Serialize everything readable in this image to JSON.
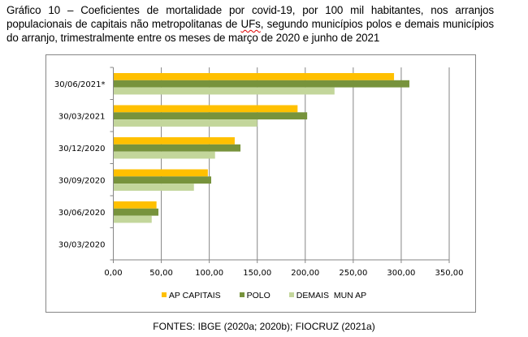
{
  "title_parts": {
    "before": "Gráfico 10 – Coeficientes de mortalidade por covid-19, por 100 mil habitantes, nos arranjos populacionais de capitais não metropolitanas de ",
    "underlined": "UFs",
    "after": ", segundo municípios polos e demais municípios do arranjo, trimestralmente entre os meses de março de 2020 e junho de 2021"
  },
  "source": "FONTES: IBGE (2020a; 2020b); FIOCRUZ (2021a)",
  "chart_data": {
    "type": "bar",
    "orientation": "horizontal",
    "title": "Gráfico 10 – Coeficientes de mortalidade por covid-19, por 100 mil habitantes, nos arranjos populacionais de capitais não metropolitanas de UFs, segundo municípios polos e demais municípios do arranjo, trimestralmente entre os meses de março de 2020 e junho de 2021",
    "xlabel": "",
    "ylabel": "",
    "categories": [
      "30/06/2021*",
      "30/03/2021",
      "30/12/2020",
      "30/09/2020",
      "30/06/2020",
      "30/03/2020"
    ],
    "series": [
      {
        "name": "AP CAPITAIS",
        "color": "#FFC000",
        "values": [
          292.5,
          192,
          126.5,
          98.5,
          45,
          0
        ]
      },
      {
        "name": "POLO",
        "color": "#77933C",
        "values": [
          308.5,
          202,
          132.5,
          102,
          47,
          0
        ]
      },
      {
        "name": "DEMAIS  MUN AP",
        "color": "#C3D69B",
        "values": [
          230.5,
          150,
          106,
          84,
          40,
          0
        ]
      }
    ],
    "xlim": [
      0,
      350
    ],
    "xticks": [
      0,
      50,
      100,
      150,
      200,
      250,
      300,
      350
    ],
    "xtick_labels": [
      "0,00",
      "50,00",
      "100,00",
      "150,00",
      "200,00",
      "250,00",
      "300,00",
      "350,00"
    ],
    "grid": "vertical",
    "legend": "bottom",
    "gridline_color": "#868686"
  }
}
